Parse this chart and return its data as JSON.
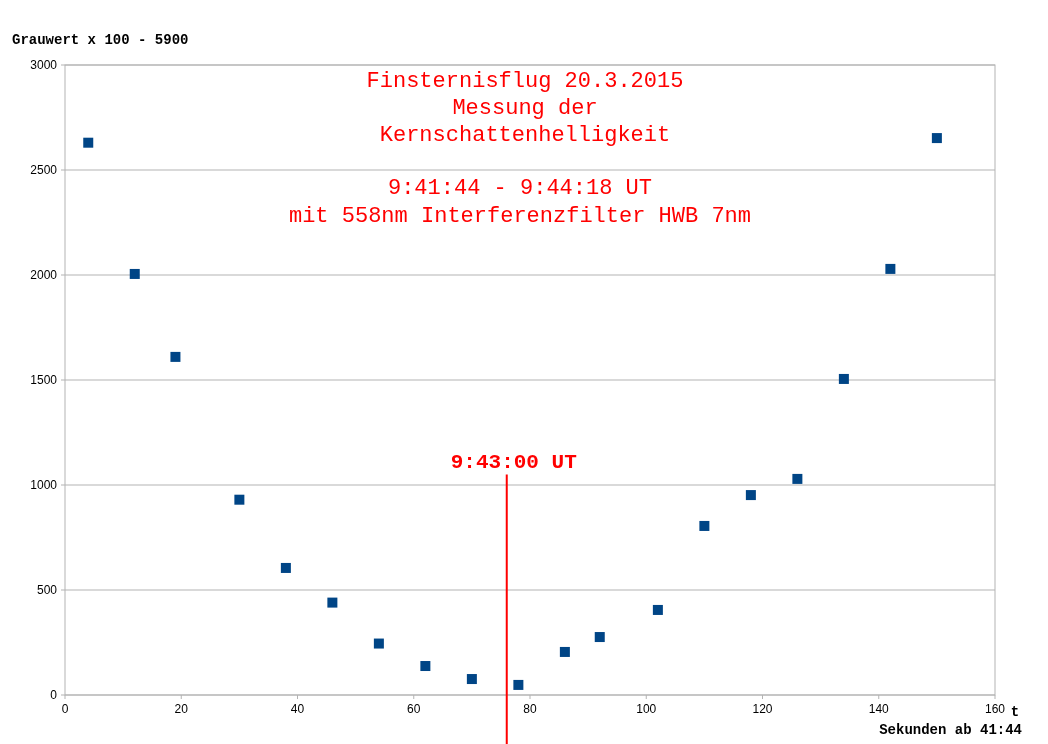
{
  "chart_data": {
    "type": "scatter",
    "title": "Finsternisflug 20.3.2015\nMessung der\nKernschattenhelligkeit",
    "subtitle": "9:41:44 - 9:44:18 UT\nmit 558nm Interferenzfilter HWB 7nm",
    "xlabel": "t",
    "ylabel": "Grauwert x 100 - 5900",
    "annotations": [
      "Sekunden ab 41:44",
      {
        "text": "9:43:00 UT",
        "x": 76,
        "y": 1050
      }
    ],
    "x": [
      4,
      12,
      19,
      30,
      38,
      46,
      54,
      62,
      70,
      78,
      86,
      92,
      102,
      110,
      118,
      126,
      134,
      142,
      150
    ],
    "series": [
      {
        "color": "#004586",
        "values": [
          2630,
          2005,
          1610,
          930,
          605,
          440,
          245,
          138,
          76,
          48,
          205,
          276,
          405,
          805,
          952,
          1029,
          1505,
          2029,
          2652
        ]
      }
    ],
    "xlim": [
      0,
      160
    ],
    "xticks": [
      0,
      20,
      40,
      60,
      80,
      100,
      120,
      140,
      160
    ],
    "ylim": [
      0,
      3000
    ],
    "yticks": [
      0,
      500,
      1000,
      1500,
      2000,
      2500,
      3000
    ],
    "grid": "y",
    "marker": "square",
    "ref_lines": [
      {
        "axis": "x",
        "value": 76,
        "color": "#ff0000"
      }
    ]
  }
}
